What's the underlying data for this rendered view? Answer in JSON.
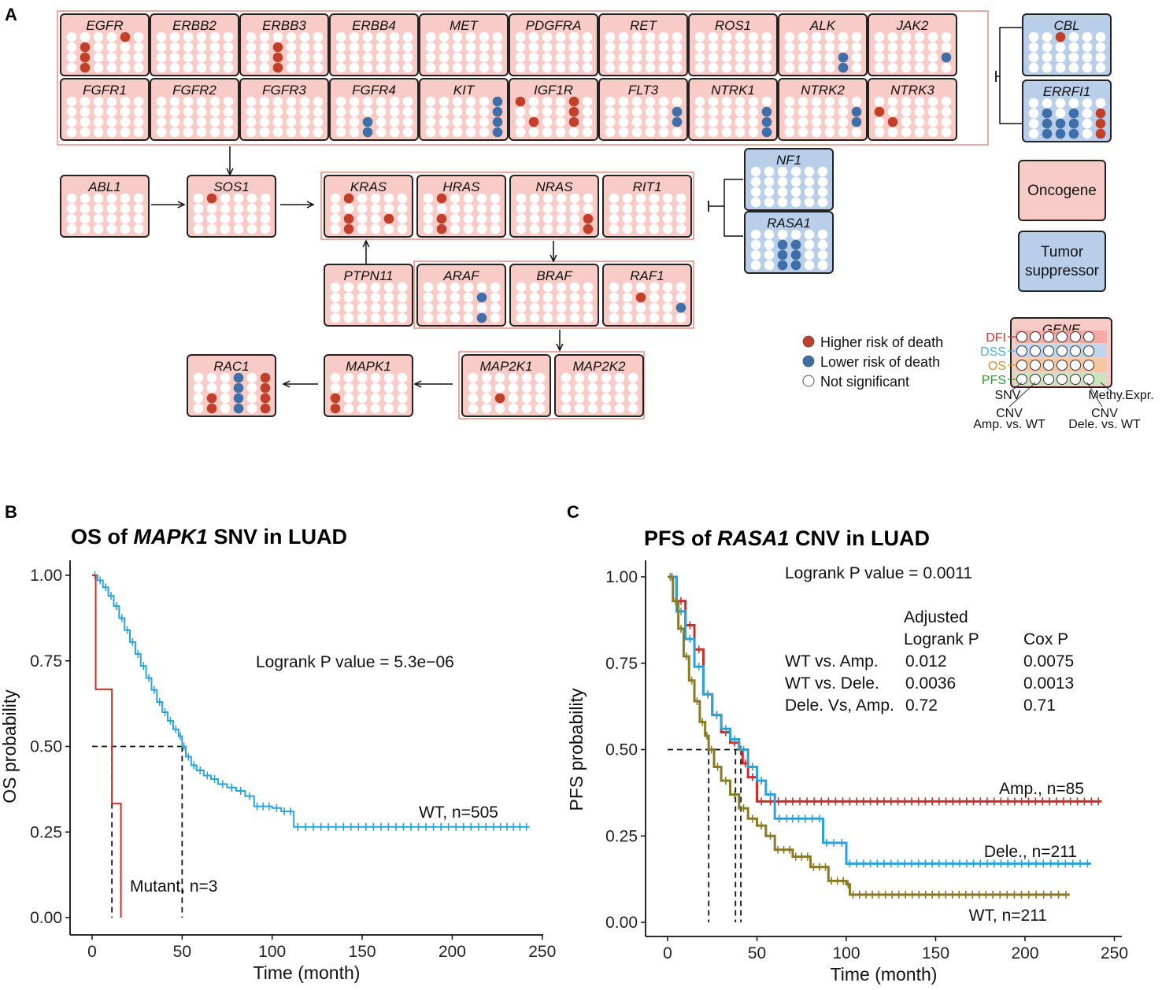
{
  "panels": {
    "a": "A",
    "b": "B",
    "c": "C"
  },
  "colors": {
    "oncogene_fill": "#f8cbc6",
    "oncogene_group_border": "#e98a80",
    "suppressor_fill": "#b9cee9",
    "higher": "#c2402a",
    "lower": "#3f6fa8",
    "ns": "#ffffff",
    "km_red": "#c9302c",
    "km_blue": "#29a3d8",
    "km_olive": "#8a7a24"
  },
  "pathway": {
    "genes": [
      {
        "name": "EGFR",
        "type": "onc",
        "dots": [
          [
            4,
            0,
            "h"
          ],
          [
            1,
            1,
            "h"
          ],
          [
            1,
            2,
            "h"
          ],
          [
            1,
            3,
            "h"
          ]
        ]
      },
      {
        "name": "ERBB2",
        "type": "onc",
        "dots": []
      },
      {
        "name": "ERBB3",
        "type": "onc",
        "dots": [
          [
            2,
            1,
            "h"
          ],
          [
            2,
            2,
            "h"
          ],
          [
            2,
            3,
            "h"
          ]
        ]
      },
      {
        "name": "ERBB4",
        "type": "onc",
        "dots": []
      },
      {
        "name": "MET",
        "type": "onc",
        "dots": []
      },
      {
        "name": "PDGFRA",
        "type": "onc",
        "dots": []
      },
      {
        "name": "RET",
        "type": "onc",
        "dots": []
      },
      {
        "name": "ROS1",
        "type": "onc",
        "dots": []
      },
      {
        "name": "ALK",
        "type": "onc",
        "dots": [
          [
            4,
            2,
            "l"
          ],
          [
            4,
            3,
            "l"
          ]
        ]
      },
      {
        "name": "JAK2",
        "type": "onc",
        "dots": [
          [
            5,
            2,
            "l"
          ]
        ]
      },
      {
        "name": "FGFR1",
        "type": "onc",
        "dots": []
      },
      {
        "name": "FGFR2",
        "type": "onc",
        "dots": []
      },
      {
        "name": "FGFR3",
        "type": "onc",
        "dots": []
      },
      {
        "name": "FGFR4",
        "type": "onc",
        "dots": [
          [
            2,
            2,
            "l"
          ],
          [
            2,
            3,
            "l"
          ]
        ]
      },
      {
        "name": "KIT",
        "type": "onc",
        "dots": [
          [
            5,
            0,
            "l"
          ],
          [
            5,
            1,
            "l"
          ],
          [
            5,
            2,
            "l"
          ],
          [
            5,
            3,
            "l"
          ]
        ]
      },
      {
        "name": "IGF1R",
        "type": "onc",
        "dots": [
          [
            0,
            0,
            "h"
          ],
          [
            4,
            0,
            "h"
          ],
          [
            4,
            1,
            "h"
          ],
          [
            1,
            2,
            "h"
          ],
          [
            4,
            2,
            "h"
          ]
        ]
      },
      {
        "name": "FLT3",
        "type": "onc",
        "dots": [
          [
            5,
            1,
            "l"
          ],
          [
            5,
            2,
            "l"
          ]
        ]
      },
      {
        "name": "NTRK1",
        "type": "onc",
        "dots": [
          [
            5,
            1,
            "l"
          ],
          [
            5,
            2,
            "l"
          ],
          [
            5,
            3,
            "l"
          ]
        ]
      },
      {
        "name": "NTRK2",
        "type": "onc",
        "dots": [
          [
            5,
            1,
            "l"
          ],
          [
            5,
            2,
            "l"
          ]
        ]
      },
      {
        "name": "NTRK3",
        "type": "onc",
        "dots": [
          [
            0,
            1,
            "h"
          ],
          [
            1,
            2,
            "h"
          ]
        ]
      },
      {
        "name": "CBL",
        "type": "sup",
        "dots": [
          [
            2,
            0,
            "h"
          ]
        ]
      },
      {
        "name": "ERRFI1",
        "type": "sup",
        "dots": [
          [
            1,
            1,
            "l"
          ],
          [
            3,
            1,
            "l"
          ],
          [
            5,
            1,
            "h"
          ],
          [
            1,
            2,
            "l"
          ],
          [
            2,
            2,
            "l"
          ],
          [
            3,
            2,
            "l"
          ],
          [
            5,
            2,
            "h"
          ],
          [
            1,
            3,
            "l"
          ],
          [
            2,
            3,
            "l"
          ],
          [
            3,
            3,
            "l"
          ],
          [
            5,
            3,
            "h"
          ]
        ]
      },
      {
        "name": "ABL1",
        "type": "onc",
        "dots": []
      },
      {
        "name": "SOS1",
        "type": "onc",
        "dots": [
          [
            1,
            0,
            "h"
          ]
        ]
      },
      {
        "name": "KRAS",
        "type": "onc",
        "dots": [
          [
            1,
            0,
            "h"
          ],
          [
            1,
            2,
            "h"
          ],
          [
            4,
            2,
            "h"
          ],
          [
            1,
            3,
            "h"
          ]
        ]
      },
      {
        "name": "HRAS",
        "type": "onc",
        "dots": [
          [
            1,
            0,
            "h"
          ],
          [
            1,
            2,
            "h"
          ],
          [
            1,
            3,
            "h"
          ]
        ]
      },
      {
        "name": "NRAS",
        "type": "onc",
        "dots": [
          [
            5,
            2,
            "h"
          ],
          [
            5,
            3,
            "h"
          ]
        ]
      },
      {
        "name": "RIT1",
        "type": "onc",
        "dots": []
      },
      {
        "name": "NF1",
        "type": "sup",
        "dots": []
      },
      {
        "name": "RASA1",
        "type": "sup",
        "dots": [
          [
            2,
            1,
            "l"
          ],
          [
            3,
            1,
            "l"
          ],
          [
            2,
            2,
            "l"
          ],
          [
            3,
            2,
            "l"
          ],
          [
            2,
            3,
            "l"
          ],
          [
            3,
            3,
            "l"
          ]
        ]
      },
      {
        "name": "PTPN11",
        "type": "onc",
        "dots": []
      },
      {
        "name": "ARAF",
        "type": "onc",
        "dots": [
          [
            4,
            1,
            "l"
          ],
          [
            4,
            3,
            "l"
          ]
        ]
      },
      {
        "name": "BRAF",
        "type": "onc",
        "dots": []
      },
      {
        "name": "RAF1",
        "type": "onc",
        "dots": [
          [
            2,
            1,
            "h"
          ],
          [
            5,
            2,
            "l"
          ]
        ]
      },
      {
        "name": "MAP2K1",
        "type": "onc",
        "dots": [
          [
            2,
            2,
            "h"
          ]
        ]
      },
      {
        "name": "MAP2K2",
        "type": "onc",
        "dots": []
      },
      {
        "name": "MAPK1",
        "type": "onc",
        "dots": [
          [
            0,
            2,
            "h"
          ],
          [
            0,
            3,
            "h"
          ]
        ]
      },
      {
        "name": "RAC1",
        "type": "onc",
        "dots": [
          [
            3,
            0,
            "l"
          ],
          [
            5,
            0,
            "h"
          ],
          [
            3,
            1,
            "l"
          ],
          [
            5,
            1,
            "h"
          ],
          [
            1,
            2,
            "h"
          ],
          [
            3,
            2,
            "l"
          ],
          [
            5,
            2,
            "h"
          ],
          [
            1,
            3,
            "h"
          ],
          [
            3,
            3,
            "l"
          ],
          [
            5,
            3,
            "h"
          ]
        ]
      }
    ],
    "type_legend": {
      "oncogene": "Oncogene",
      "suppressor_line1": "Tumor",
      "suppressor_line2": "suppressor"
    },
    "risk_legend": {
      "higher": "Higher risk of death",
      "lower": "Lower risk of death",
      "ns": "Not significant"
    },
    "key": {
      "gene": "GENE",
      "rows": [
        "DFI",
        "DSS",
        "OS",
        "PFS"
      ],
      "row_colors": [
        "#e0302a",
        "#4ab0e0",
        "#e08a2a",
        "#2aa02a"
      ],
      "snv": "SNV",
      "methy_expr": "Methy.Expr.",
      "cnv_amp_1": "CNV",
      "cnv_amp_2": "Amp. vs. WT",
      "cnv_del_1": "CNV",
      "cnv_del_2": "Dele. vs. WT"
    }
  },
  "chart_data": [
    {
      "type": "line",
      "subtype": "kaplan-meier",
      "title_pre": "OS of ",
      "title_gene": "MAPK1",
      "title_post": " SNV in LUAD",
      "xlabel": "Time (month)",
      "ylabel": "OS probability",
      "xlim": [
        0,
        250
      ],
      "ylim": [
        0,
        1
      ],
      "xticks": [
        0,
        50,
        100,
        150,
        200,
        250
      ],
      "yticks": [
        "0.00",
        "0.25",
        "0.50",
        "0.75",
        "1.00"
      ],
      "pvalue_text": "Logrank P value = 5.3e−06",
      "median_lines": [
        11,
        50
      ],
      "series": [
        {
          "name": "WT",
          "label": "WT, n=505",
          "color": "#29a3d8",
          "x": [
            0,
            3,
            6,
            9,
            12,
            15,
            18,
            21,
            24,
            27,
            30,
            33,
            36,
            39,
            42,
            45,
            48,
            50,
            52,
            55,
            58,
            62,
            66,
            70,
            75,
            80,
            85,
            90,
            100,
            105,
            112,
            125,
            150,
            175,
            200,
            225,
            243
          ],
          "y": [
            1.0,
            0.985,
            0.965,
            0.94,
            0.91,
            0.875,
            0.84,
            0.805,
            0.77,
            0.735,
            0.7,
            0.665,
            0.63,
            0.6,
            0.575,
            0.55,
            0.53,
            0.5,
            0.47,
            0.445,
            0.43,
            0.415,
            0.405,
            0.39,
            0.38,
            0.37,
            0.355,
            0.325,
            0.32,
            0.31,
            0.265,
            0.265,
            0.265,
            0.265,
            0.265,
            0.265,
            0.265
          ]
        },
        {
          "name": "Mutant",
          "label": "Mutant, n=3",
          "color": "#c9302c",
          "x": [
            0,
            2,
            2,
            11,
            11,
            16,
            16
          ],
          "y": [
            1.0,
            1.0,
            0.667,
            0.667,
            0.333,
            0.333,
            0.0
          ]
        }
      ]
    },
    {
      "type": "line",
      "subtype": "kaplan-meier",
      "title_pre": "PFS of ",
      "title_gene": "RASA1",
      "title_post": " CNV in LUAD",
      "xlabel": "Time (month)",
      "ylabel": "PFS probability",
      "xlim": [
        0,
        250
      ],
      "ylim": [
        0,
        1
      ],
      "xticks": [
        0,
        50,
        100,
        150,
        200,
        250
      ],
      "yticks": [
        "0.00",
        "0.25",
        "0.50",
        "0.75",
        "1.00"
      ],
      "pvalue_text": "Logrank P value = 0.0011",
      "median_lines": [
        23,
        38,
        41
      ],
      "stats_table": {
        "header1": "Adjusted",
        "header2": "Logrank P",
        "header3": "Cox P",
        "rows": [
          {
            "label": "WT vs. Amp.",
            "logrank": "0.012",
            "cox": "0.0075"
          },
          {
            "label": "WT vs. Dele.",
            "logrank": "0.0036",
            "cox": "0.0013"
          },
          {
            "label": "Dele. Vs, Amp.",
            "logrank": "0.72",
            "cox": "0.71"
          }
        ]
      },
      "series": [
        {
          "name": "Amp.",
          "label": "Amp., n=85",
          "color": "#c9302c",
          "x": [
            0,
            5,
            10,
            15,
            20,
            25,
            30,
            35,
            40,
            42,
            45,
            50,
            55,
            60,
            80,
            100,
            150,
            200,
            243
          ],
          "y": [
            1.0,
            0.93,
            0.86,
            0.79,
            0.66,
            0.6,
            0.55,
            0.52,
            0.5,
            0.46,
            0.42,
            0.35,
            0.35,
            0.35,
            0.35,
            0.35,
            0.35,
            0.35,
            0.35
          ]
        },
        {
          "name": "Dele.",
          "label": "Dele., n=211",
          "color": "#29a3d8",
          "x": [
            0,
            5,
            10,
            15,
            20,
            25,
            30,
            35,
            40,
            45,
            50,
            55,
            60,
            65,
            75,
            87,
            95,
            100,
            150,
            200,
            237
          ],
          "y": [
            1.0,
            0.9,
            0.82,
            0.74,
            0.66,
            0.6,
            0.56,
            0.53,
            0.5,
            0.45,
            0.41,
            0.37,
            0.3,
            0.3,
            0.3,
            0.23,
            0.23,
            0.17,
            0.17,
            0.17,
            0.17
          ]
        },
        {
          "name": "WT",
          "label": "WT, n=211",
          "color": "#8a7a24",
          "x": [
            0,
            3,
            6,
            9,
            12,
            15,
            18,
            21,
            23,
            26,
            30,
            35,
            40,
            45,
            50,
            55,
            60,
            70,
            80,
            90,
            100,
            102,
            120,
            150,
            180,
            200,
            225
          ],
          "y": [
            1.0,
            0.93,
            0.85,
            0.77,
            0.7,
            0.64,
            0.58,
            0.54,
            0.5,
            0.45,
            0.41,
            0.37,
            0.33,
            0.3,
            0.28,
            0.25,
            0.21,
            0.19,
            0.16,
            0.12,
            0.11,
            0.08,
            0.08,
            0.08,
            0.08,
            0.08,
            0.08
          ]
        }
      ]
    }
  ]
}
